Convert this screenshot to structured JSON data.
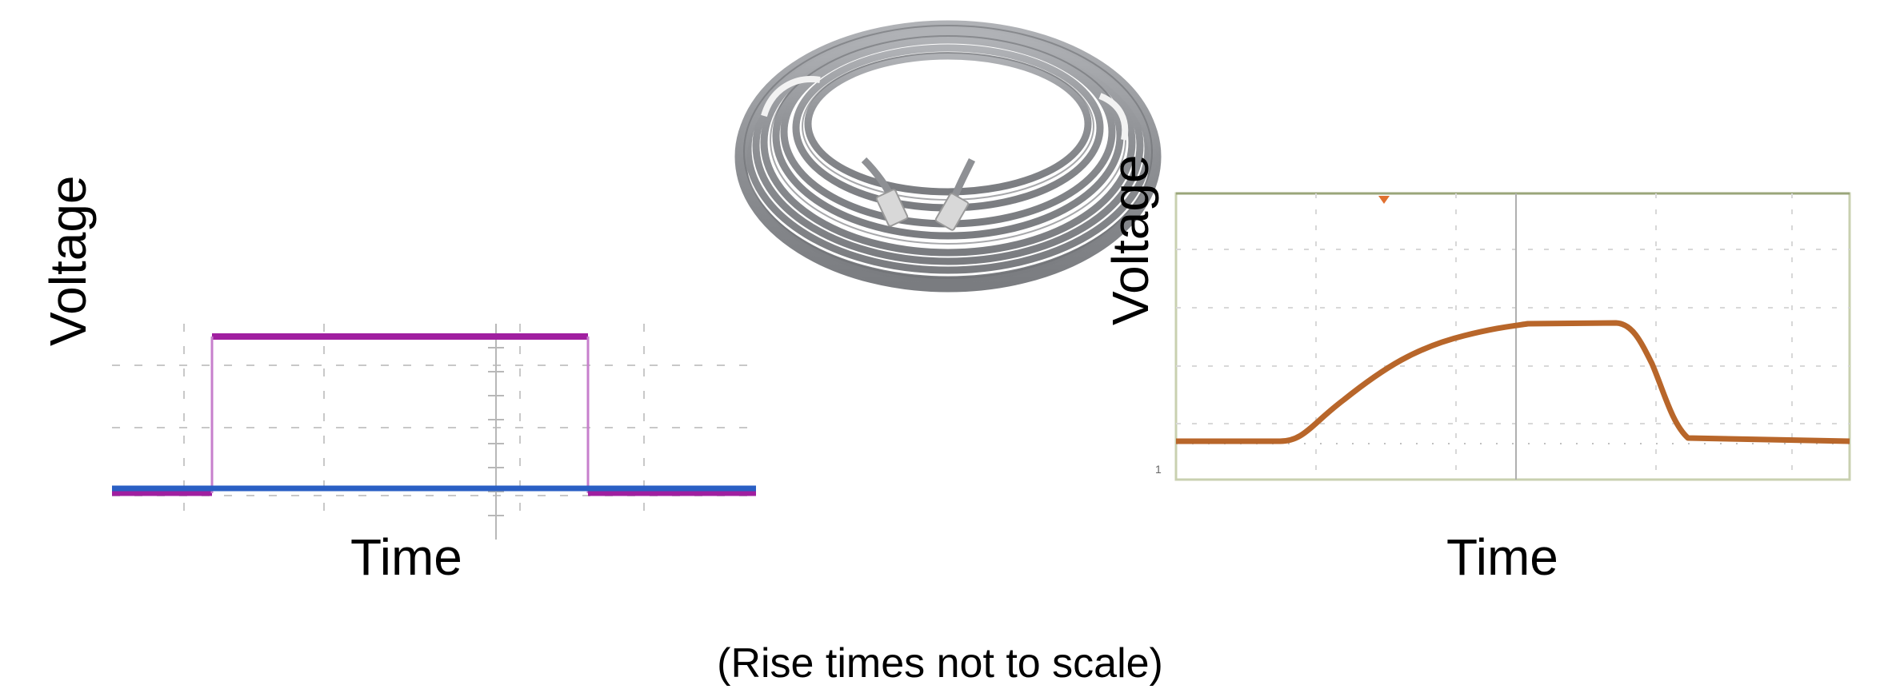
{
  "left_plot": {
    "y_label": "Voltage",
    "x_label": "Time",
    "colors": {
      "input_trace": "#a01fa0",
      "output_trace": "#2a5fc4",
      "grid": "#c8c8c8"
    }
  },
  "cable_image": {
    "icon": "ethernet-cable-coil",
    "colors": {
      "cable": "#9a9ca0",
      "tie": "#f2f2f2"
    }
  },
  "right_plot": {
    "y_label": "Voltage",
    "x_label": "Time",
    "colors": {
      "trace": "#b8662a",
      "frame": "#9aa57a",
      "marker": "#e07030"
    }
  },
  "caption": "(Rise times not to scale)"
}
